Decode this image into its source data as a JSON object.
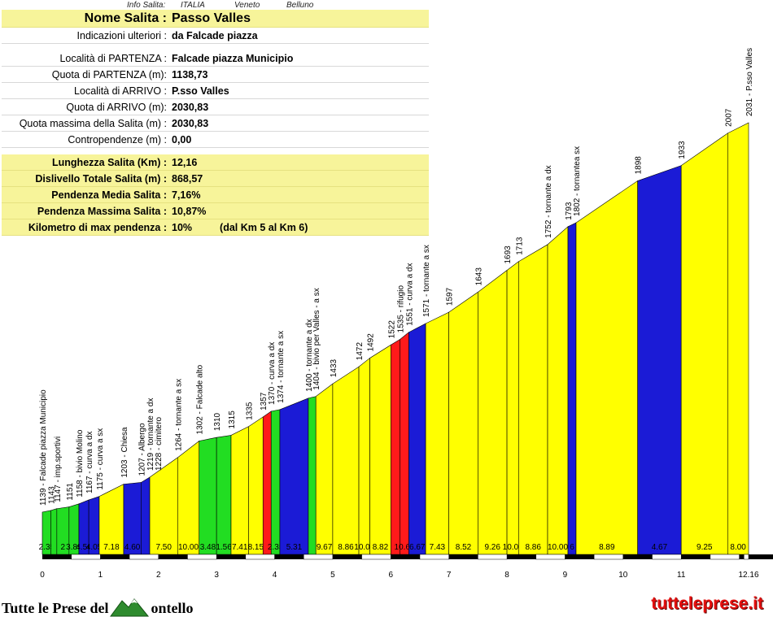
{
  "header": {
    "info_salita": "Info Salita:",
    "country": "ITALIA",
    "region": "Veneto",
    "province": "Belluno"
  },
  "info": {
    "nome_label": "Nome Salita :",
    "nome_value": "Passo Valles",
    "indicazioni_label": "Indicazioni ulteriori :",
    "indicazioni_value": "da Falcade piazza",
    "loc_partenza_label": "Località di PARTENZA :",
    "loc_partenza_value": "Falcade piazza Municipio",
    "quota_partenza_label": "Quota di PARTENZA (m):",
    "quota_partenza_value": "1138,73",
    "loc_arrivo_label": "Località di ARRIVO :",
    "loc_arrivo_value": "P.sso Valles",
    "quota_arrivo_label": "Quota di ARRIVO (m):",
    "quota_arrivo_value": "2030,83",
    "quota_max_label": "Quota massima della Salita (m) :",
    "quota_max_value": "2030,83",
    "contropendenze_label": "Contropendenze (m) :",
    "contropendenze_value": "0,00",
    "lunghezza_label": "Lunghezza Salita (Km) :",
    "lunghezza_value": "12,16",
    "dislivello_label": "Dislivello Totale Salita (m) :",
    "dislivello_value": "868,57",
    "pend_media_label": "Pendenza Media Salita :",
    "pend_media_value": "7,16%",
    "pend_max_label": "Pendenza Massima Salita :",
    "pend_max_value": "10,87%",
    "km_max_label": "Kilometro di max pendenza :",
    "km_max_value": "10%",
    "km_max_extra": "(dal Km 5 al Km 6)"
  },
  "footer": {
    "left_before": "Tutte le Prese del",
    "left_after": "ontello",
    "right": "tutteleprese.it"
  },
  "colors": {
    "green": "#22dd22",
    "blue": "#1b1bd6",
    "yellow": "#ffff00",
    "red": "#ff1a1a"
  },
  "chart_data": {
    "type": "area",
    "title": "",
    "xlabel": "",
    "ylabel": "",
    "xlim": [
      0,
      12.16
    ],
    "ylim": [
      1139,
      2031
    ],
    "x_ticks": [
      "0",
      "1",
      "2",
      "3",
      "4",
      "5",
      "6",
      "7",
      "8",
      "9",
      "10",
      "11",
      "12.16"
    ],
    "segments": [
      {
        "x0": 0.0,
        "x1": 0.15,
        "grade": "2.35",
        "color": "green"
      },
      {
        "x0": 0.15,
        "x1": 0.25,
        "grade": "",
        "color": "green"
      },
      {
        "x0": 0.25,
        "x1": 0.46,
        "grade": "2",
        "color": "green"
      },
      {
        "x0": 0.46,
        "x1": 0.63,
        "grade": "3.89",
        "color": "green"
      },
      {
        "x0": 0.63,
        "x1": 0.8,
        "grade": "4.56",
        "color": "blue"
      },
      {
        "x0": 0.8,
        "x1": 0.98,
        "grade": "4.05",
        "color": "blue"
      },
      {
        "x0": 0.98,
        "x1": 1.4,
        "grade": "7.18",
        "color": "yellow"
      },
      {
        "x0": 1.4,
        "x1": 1.7,
        "grade": "4.60",
        "color": "blue"
      },
      {
        "x0": 1.7,
        "x1": 1.85,
        "grade": "",
        "color": "blue"
      },
      {
        "x0": 1.85,
        "x1": 2.33,
        "grade": "7.50",
        "color": "yellow"
      },
      {
        "x0": 2.33,
        "x1": 2.7,
        "grade": "10.00",
        "color": "yellow"
      },
      {
        "x0": 2.7,
        "x1": 3.0,
        "grade": "3.48",
        "color": "green"
      },
      {
        "x0": 3.0,
        "x1": 3.25,
        "grade": "1.56",
        "color": "green"
      },
      {
        "x0": 3.25,
        "x1": 3.55,
        "grade": "7.41",
        "color": "yellow"
      },
      {
        "x0": 3.55,
        "x1": 3.8,
        "grade": "8.15",
        "color": "yellow"
      },
      {
        "x0": 3.8,
        "x1": 3.94,
        "grade": "",
        "color": "red"
      },
      {
        "x0": 3.94,
        "x1": 4.09,
        "grade": "2.35",
        "color": "green"
      },
      {
        "x0": 4.09,
        "x1": 4.58,
        "grade": "5.31",
        "color": "blue"
      },
      {
        "x0": 4.58,
        "x1": 4.71,
        "grade": "",
        "color": "green"
      },
      {
        "x0": 4.71,
        "x1": 5.0,
        "grade": "9.67",
        "color": "yellow"
      },
      {
        "x0": 5.0,
        "x1": 5.45,
        "grade": "8.86",
        "color": "yellow"
      },
      {
        "x0": 5.45,
        "x1": 5.64,
        "grade": "10.00",
        "color": "yellow"
      },
      {
        "x0": 5.64,
        "x1": 6.0,
        "grade": "8.82",
        "color": "yellow"
      },
      {
        "x0": 6.0,
        "x1": 6.16,
        "grade": "",
        "color": "red"
      },
      {
        "x0": 6.16,
        "x1": 6.31,
        "grade": "10.67",
        "color": "red"
      },
      {
        "x0": 6.31,
        "x1": 6.6,
        "grade": "6.67",
        "color": "blue"
      },
      {
        "x0": 6.6,
        "x1": 7.0,
        "grade": "7.43",
        "color": "yellow"
      },
      {
        "x0": 7.0,
        "x1": 7.5,
        "grade": "8.52",
        "color": "yellow"
      },
      {
        "x0": 7.5,
        "x1": 8.0,
        "grade": "9.26",
        "color": "yellow"
      },
      {
        "x0": 8.0,
        "x1": 8.2,
        "grade": "10.00",
        "color": "yellow"
      },
      {
        "x0": 8.2,
        "x1": 8.7,
        "grade": "8.86",
        "color": "yellow"
      },
      {
        "x0": 8.7,
        "x1": 9.05,
        "grade": "10.00",
        "color": "yellow"
      },
      {
        "x0": 9.05,
        "x1": 9.19,
        "grade": "6",
        "color": "blue"
      },
      {
        "x0": 9.19,
        "x1": 10.25,
        "grade": "8.89",
        "color": "yellow"
      },
      {
        "x0": 10.25,
        "x1": 11.0,
        "grade": "4.67",
        "color": "blue"
      },
      {
        "x0": 11.0,
        "x1": 11.8,
        "grade": "9.25",
        "color": "yellow"
      },
      {
        "x0": 11.8,
        "x1": 12.16,
        "grade": "8.00",
        "color": "yellow"
      }
    ],
    "profile": [
      {
        "x": 0.0,
        "y": 1139
      },
      {
        "x": 0.15,
        "y": 1143
      },
      {
        "x": 0.25,
        "y": 1147
      },
      {
        "x": 0.46,
        "y": 1151
      },
      {
        "x": 0.63,
        "y": 1158
      },
      {
        "x": 0.8,
        "y": 1167
      },
      {
        "x": 0.98,
        "y": 1175
      },
      {
        "x": 1.4,
        "y": 1203
      },
      {
        "x": 1.7,
        "y": 1207
      },
      {
        "x": 1.85,
        "y": 1219
      },
      {
        "x": 2.33,
        "y": 1264
      },
      {
        "x": 2.7,
        "y": 1302
      },
      {
        "x": 3.0,
        "y": 1310
      },
      {
        "x": 3.25,
        "y": 1315
      },
      {
        "x": 3.55,
        "y": 1335
      },
      {
        "x": 3.8,
        "y": 1357
      },
      {
        "x": 3.94,
        "y": 1370
      },
      {
        "x": 4.09,
        "y": 1374
      },
      {
        "x": 4.58,
        "y": 1400
      },
      {
        "x": 4.71,
        "y": 1404
      },
      {
        "x": 5.0,
        "y": 1433
      },
      {
        "x": 5.45,
        "y": 1472
      },
      {
        "x": 5.64,
        "y": 1492
      },
      {
        "x": 6.0,
        "y": 1522
      },
      {
        "x": 6.16,
        "y": 1535
      },
      {
        "x": 6.31,
        "y": 1551
      },
      {
        "x": 6.6,
        "y": 1571
      },
      {
        "x": 7.0,
        "y": 1597
      },
      {
        "x": 7.5,
        "y": 1643
      },
      {
        "x": 8.0,
        "y": 1693
      },
      {
        "x": 8.2,
        "y": 1713
      },
      {
        "x": 8.7,
        "y": 1752
      },
      {
        "x": 9.05,
        "y": 1793
      },
      {
        "x": 9.19,
        "y": 1802
      },
      {
        "x": 10.25,
        "y": 1898
      },
      {
        "x": 11.0,
        "y": 1933
      },
      {
        "x": 11.8,
        "y": 2007
      },
      {
        "x": 12.16,
        "y": 2031
      }
    ],
    "annotations": [
      "1139 - Falcade piazza Municipio",
      "1143",
      "1147 - imp.sportivi",
      "1151",
      "1158 - bivio Molino",
      "1167 - curva a dx",
      "1175 - curva a sx",
      "1203 - Chiesa",
      "1207 - Albergo",
      "1219 - tornante a dx",
      "1264 - tornante a sx",
      "1302 - Falcade alto",
      "1310",
      "1315",
      "1335",
      "1357",
      "1370 - curva a dx",
      "1374 - tornante a sx",
      "1400 - tornante a dx",
      "1404 - bivio per Valles - a sx",
      "1433",
      "1472",
      "1492",
      "1522",
      "1535 - rifugio",
      "1551 - curva a dx",
      "1571 - tornante a sx",
      "1597",
      "1643",
      "1693",
      "1713",
      "1752 - tornante a dx",
      "1793",
      "1802 - tornantea sx",
      "1898",
      "1933",
      "2007",
      "2031 - P.sso Valles"
    ],
    "extra_annotations": [
      {
        "x": 1.85,
        "text": "1228 - cimitero"
      }
    ]
  }
}
